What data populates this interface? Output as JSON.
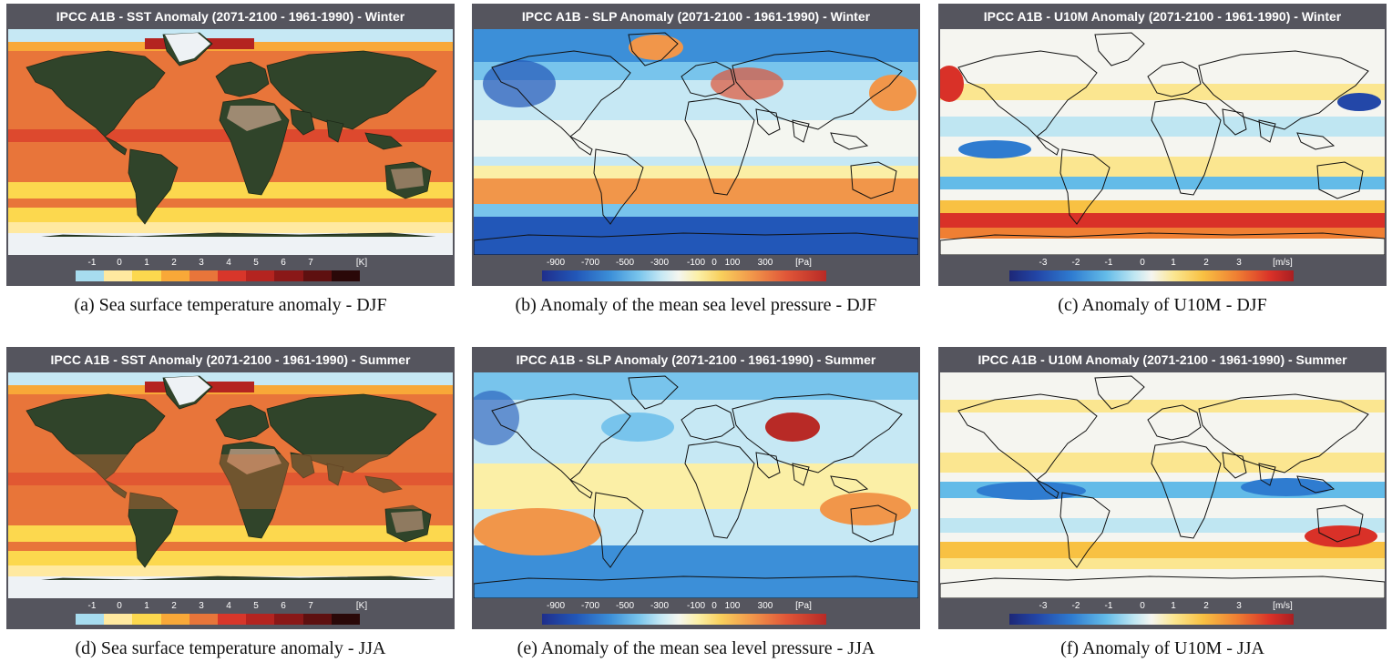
{
  "palettes": {
    "sst": [
      "#a7dcef",
      "#ffe9a0",
      "#fcd84e",
      "#f8a838",
      "#e8753a",
      "#d8362a",
      "#b42420",
      "#8a1818",
      "#5e1010",
      "#2a0808"
    ],
    "slp": "linear-gradient(90deg,#1f2f8c 0%,#2257b8 12%,#3c8fd8 24%,#78c4ec 34%,#c6e8f4 42%,#f4f6f0 48%,#fbefa6 55%,#f8cf5c 63%,#f1964a 74%,#e05638 86%,#b82a26 100%)",
    "u10": "linear-gradient(90deg,#1d2777 0%,#2347a8 10%,#2f7cd0 22%,#63bbe8 34%,#bfe6f2 44%,#f5f5f0 50%,#fbe690 58%,#f8c143 68%,#ef7f33 80%,#d93128 92%,#a91f22 100%)"
  },
  "colors": {
    "frame_bg": "#55555e",
    "sst_ocean": "#e8753a",
    "land_green": "#30442a",
    "land_desert": "#9e8a72",
    "ice": "#eef2f5"
  },
  "panels": [
    {
      "id": "a",
      "type": "sst",
      "title": "IPCC A1B  - SST Anomaly (2071-2100 - 1961-1990) - Winter",
      "scale_ticks": [
        "-1",
        "0",
        "1",
        "2",
        "3",
        "4",
        "5",
        "6",
        "7"
      ],
      "unit": "[K]",
      "caption": "(a)  Sea surface temperature anomaly - DJF"
    },
    {
      "id": "b",
      "type": "slp",
      "title": "IPCC A1B  - SLP Anomaly (2071-2100 - 1961-1990) - Winter",
      "scale_ticks": [
        "-900",
        "-700",
        "-500",
        "-300",
        "-100",
        "0",
        "100",
        "300"
      ],
      "unit": "[Pa]",
      "caption": "(b)  Anomaly of the mean sea level pressure - DJF"
    },
    {
      "id": "c",
      "type": "u10",
      "title": "IPCC A1B  - U10M Anomaly (2071-2100 - 1961-1990) - Winter",
      "scale_ticks": [
        "-3",
        "-2",
        "-1",
        "0",
        "1",
        "2",
        "3"
      ],
      "unit": "[m/s]",
      "caption": "(c)  Anomaly of U10M - DJF"
    },
    {
      "id": "d",
      "type": "sst",
      "title": "IPCC A1B  - SST Anomaly (2071-2100 - 1961-1990) - Summer",
      "scale_ticks": [
        "-1",
        "0",
        "1",
        "2",
        "3",
        "4",
        "5",
        "6",
        "7"
      ],
      "unit": "[K]",
      "caption": "(d)  Sea surface temperature anomaly - JJA"
    },
    {
      "id": "e",
      "type": "slp",
      "title": "IPCC A1B  - SLP Anomaly (2071-2100 - 1961-1990) - Summer",
      "scale_ticks": [
        "-900",
        "-700",
        "-500",
        "-300",
        "-100",
        "0",
        "100",
        "300"
      ],
      "unit": "[Pa]",
      "caption": "(e)  Anomaly of the mean sea level pressure - JJA"
    },
    {
      "id": "f",
      "type": "u10",
      "title": "IPCC A1B  - U10M Anomaly (2071-2100 - 1961-1990) - Summer",
      "scale_ticks": [
        "-3",
        "-2",
        "-1",
        "0",
        "1",
        "2",
        "3"
      ],
      "unit": "[m/s]",
      "caption": "(f)  Anomaly of U10M - JJA"
    }
  ]
}
